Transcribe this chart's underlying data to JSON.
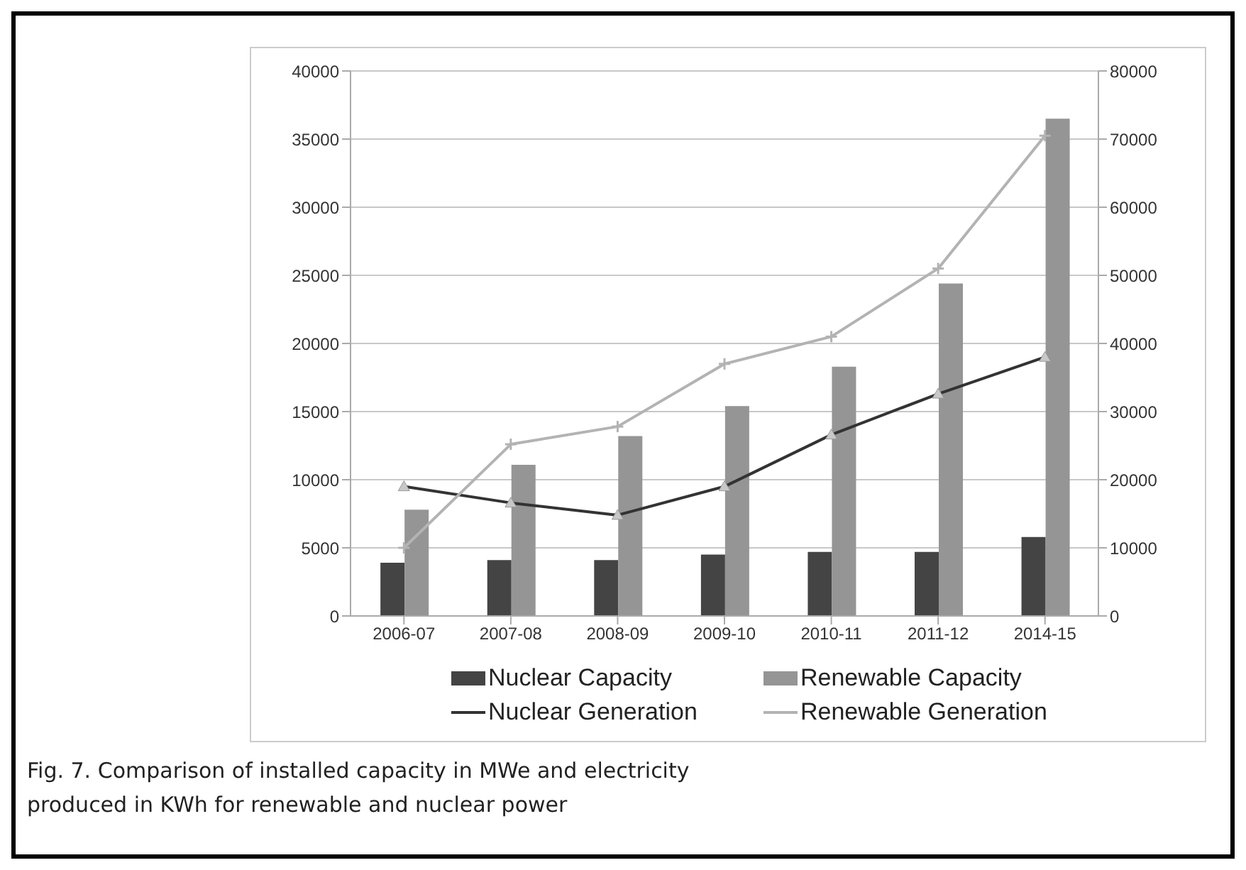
{
  "chart_data": {
    "type": "bar",
    "categories": [
      "2006-07",
      "2007-08",
      "2008-09",
      "2009-10",
      "2010-11",
      "2011-12",
      "2014-15"
    ],
    "series": [
      {
        "name": "Nuclear Capacity",
        "color": "#444444",
        "values": [
          3900,
          4100,
          4100,
          4500,
          4700,
          4700,
          5800
        ]
      },
      {
        "name": "Renewable Capacity",
        "color": "#959595",
        "values": [
          7800,
          11100,
          13200,
          15400,
          18300,
          24400,
          36500
        ]
      },
      {
        "name": "Nuclear Generation",
        "type": "line",
        "axis": "y2",
        "marker": "triangle",
        "color": "#333333",
        "values": [
          19000,
          16600,
          14800,
          19000,
          26600,
          32600,
          38000
        ]
      },
      {
        "name": "Renewable Generation",
        "type": "line",
        "axis": "y2",
        "marker": "cross",
        "color": "#b3b3b3",
        "values": [
          10000,
          25200,
          27800,
          37000,
          41000,
          51000,
          70500
        ]
      }
    ],
    "ylim": [
      0,
      40000
    ],
    "yticks": [
      0,
      5000,
      10000,
      15000,
      20000,
      25000,
      30000,
      35000,
      40000
    ],
    "y2lim": [
      0,
      80000
    ],
    "y2ticks": [
      0,
      10000,
      20000,
      30000,
      40000,
      50000,
      60000,
      70000,
      80000
    ],
    "grid": "y",
    "legend": "bottom",
    "annotations": [
      "Fig. 7. Comparison of installed capacity in MWe and electricity produced in KWh for renewable and nuclear power"
    ]
  }
}
